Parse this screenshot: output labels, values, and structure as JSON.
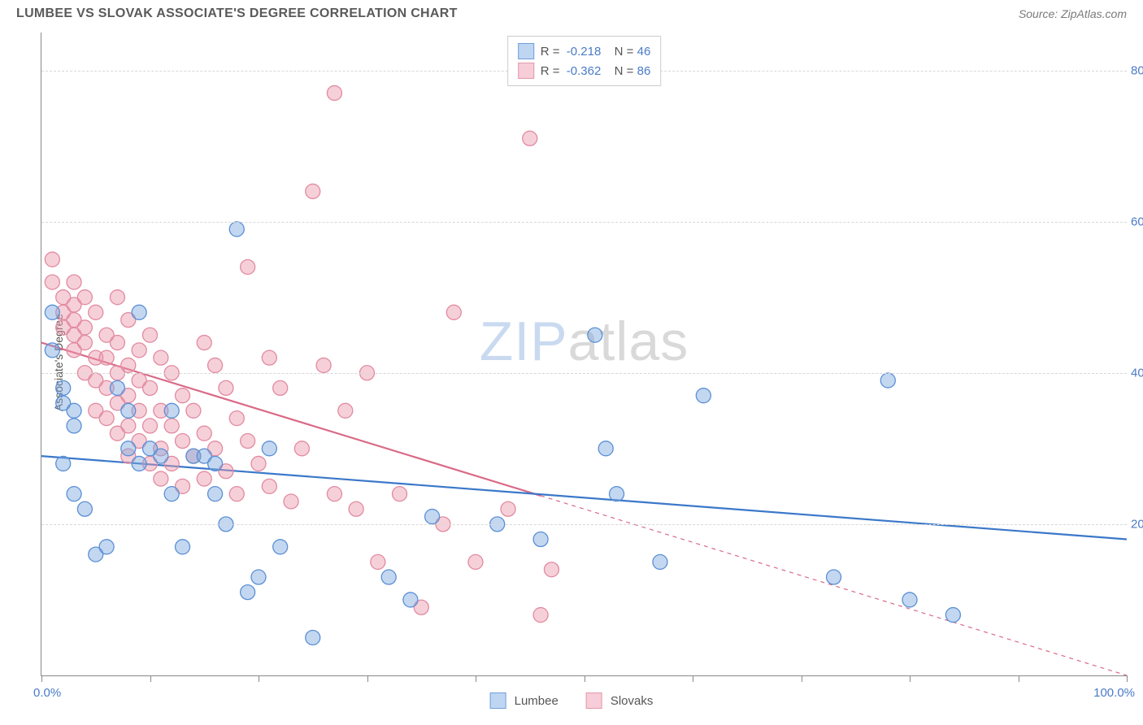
{
  "title": "LUMBEE VS SLOVAK ASSOCIATE'S DEGREE CORRELATION CHART",
  "source_label": "Source: ZipAtlas.com",
  "y_label": "Associate's Degree",
  "watermark": {
    "zip": "ZIP",
    "atlas": "atlas"
  },
  "chart": {
    "type": "scatter",
    "xlim": [
      0,
      100
    ],
    "ylim": [
      0,
      85
    ],
    "y_ticks": [
      20,
      40,
      60,
      80
    ],
    "y_tick_labels": [
      "20.0%",
      "40.0%",
      "60.0%",
      "80.0%"
    ],
    "x_tick_positions": [
      0,
      10,
      20,
      30,
      40,
      50,
      60,
      70,
      80,
      90,
      100
    ],
    "x_label_min": "0.0%",
    "x_label_max": "100.0%",
    "background_color": "#ffffff",
    "grid_color": "#d8d8d8",
    "axis_color": "#888888",
    "tick_label_color": "#4a7bc8",
    "series": [
      {
        "name": "Lumbee",
        "color_fill": "rgba(123,168,222,0.45)",
        "color_stroke": "#5b8fd6",
        "swatch_fill": "#bfd6f2",
        "swatch_stroke": "#6f9fdd",
        "r_value": "-0.218",
        "n_value": "46",
        "trend": {
          "x1": 0,
          "y1": 29,
          "x2": 100,
          "y2": 18,
          "solid_until_x": 100,
          "stroke": "#3b78c9",
          "stroke_width": 2.2
        },
        "marker_radius": 9,
        "points": [
          [
            1,
            48
          ],
          [
            1,
            43
          ],
          [
            2,
            38
          ],
          [
            2,
            36
          ],
          [
            3,
            35
          ],
          [
            3,
            33
          ],
          [
            2,
            28
          ],
          [
            3,
            24
          ],
          [
            4,
            22
          ],
          [
            5,
            16
          ],
          [
            6,
            17
          ],
          [
            7,
            38
          ],
          [
            8,
            35
          ],
          [
            8,
            30
          ],
          [
            9,
            48
          ],
          [
            9,
            28
          ],
          [
            10,
            30
          ],
          [
            11,
            29
          ],
          [
            12,
            35
          ],
          [
            12,
            24
          ],
          [
            13,
            17
          ],
          [
            14,
            29
          ],
          [
            15,
            29
          ],
          [
            16,
            28
          ],
          [
            16,
            24
          ],
          [
            17,
            20
          ],
          [
            18,
            59
          ],
          [
            19,
            11
          ],
          [
            20,
            13
          ],
          [
            21,
            30
          ],
          [
            22,
            17
          ],
          [
            25,
            5
          ],
          [
            32,
            13
          ],
          [
            34,
            10
          ],
          [
            36,
            21
          ],
          [
            42,
            20
          ],
          [
            46,
            18
          ],
          [
            51,
            45
          ],
          [
            52,
            30
          ],
          [
            53,
            24
          ],
          [
            57,
            15
          ],
          [
            61,
            37
          ],
          [
            78,
            39
          ],
          [
            73,
            13
          ],
          [
            80,
            10
          ],
          [
            84,
            8
          ]
        ]
      },
      {
        "name": "Slovaks",
        "color_fill": "rgba(236,150,170,0.45)",
        "color_stroke": "#e28aa0",
        "swatch_fill": "#f6cdd8",
        "swatch_stroke": "#e598ab",
        "r_value": "-0.362",
        "n_value": "86",
        "trend": {
          "x1": 0,
          "y1": 44,
          "x2": 100,
          "y2": 0,
          "solid_until_x": 46,
          "stroke": "#d96a87",
          "stroke_width": 2.2,
          "dash": "5,5"
        },
        "marker_radius": 9,
        "points": [
          [
            1,
            55
          ],
          [
            1,
            52
          ],
          [
            2,
            50
          ],
          [
            2,
            48
          ],
          [
            2,
            46
          ],
          [
            3,
            52
          ],
          [
            3,
            49
          ],
          [
            3,
            47
          ],
          [
            3,
            45
          ],
          [
            3,
            43
          ],
          [
            4,
            50
          ],
          [
            4,
            46
          ],
          [
            4,
            44
          ],
          [
            4,
            40
          ],
          [
            5,
            48
          ],
          [
            5,
            42
          ],
          [
            5,
            39
          ],
          [
            5,
            35
          ],
          [
            6,
            45
          ],
          [
            6,
            42
          ],
          [
            6,
            38
          ],
          [
            6,
            34
          ],
          [
            7,
            50
          ],
          [
            7,
            44
          ],
          [
            7,
            40
          ],
          [
            7,
            36
          ],
          [
            7,
            32
          ],
          [
            8,
            47
          ],
          [
            8,
            41
          ],
          [
            8,
            37
          ],
          [
            8,
            33
          ],
          [
            8,
            29
          ],
          [
            9,
            43
          ],
          [
            9,
            39
          ],
          [
            9,
            35
          ],
          [
            9,
            31
          ],
          [
            10,
            45
          ],
          [
            10,
            38
          ],
          [
            10,
            33
          ],
          [
            10,
            28
          ],
          [
            11,
            42
          ],
          [
            11,
            35
          ],
          [
            11,
            30
          ],
          [
            11,
            26
          ],
          [
            12,
            40
          ],
          [
            12,
            33
          ],
          [
            12,
            28
          ],
          [
            13,
            37
          ],
          [
            13,
            31
          ],
          [
            13,
            25
          ],
          [
            14,
            35
          ],
          [
            14,
            29
          ],
          [
            15,
            44
          ],
          [
            15,
            32
          ],
          [
            15,
            26
          ],
          [
            16,
            41
          ],
          [
            16,
            30
          ],
          [
            17,
            38
          ],
          [
            17,
            27
          ],
          [
            18,
            34
          ],
          [
            18,
            24
          ],
          [
            19,
            54
          ],
          [
            19,
            31
          ],
          [
            20,
            28
          ],
          [
            21,
            42
          ],
          [
            21,
            25
          ],
          [
            22,
            38
          ],
          [
            23,
            23
          ],
          [
            24,
            30
          ],
          [
            25,
            64
          ],
          [
            26,
            41
          ],
          [
            27,
            24
          ],
          [
            27,
            77
          ],
          [
            28,
            35
          ],
          [
            29,
            22
          ],
          [
            30,
            40
          ],
          [
            31,
            15
          ],
          [
            33,
            24
          ],
          [
            35,
            9
          ],
          [
            37,
            20
          ],
          [
            38,
            48
          ],
          [
            40,
            15
          ],
          [
            43,
            22
          ],
          [
            45,
            71
          ],
          [
            46,
            8
          ],
          [
            47,
            14
          ]
        ]
      }
    ]
  },
  "legend_bottom": {
    "items": [
      {
        "name": "Lumbee"
      },
      {
        "name": "Slovaks"
      }
    ]
  }
}
